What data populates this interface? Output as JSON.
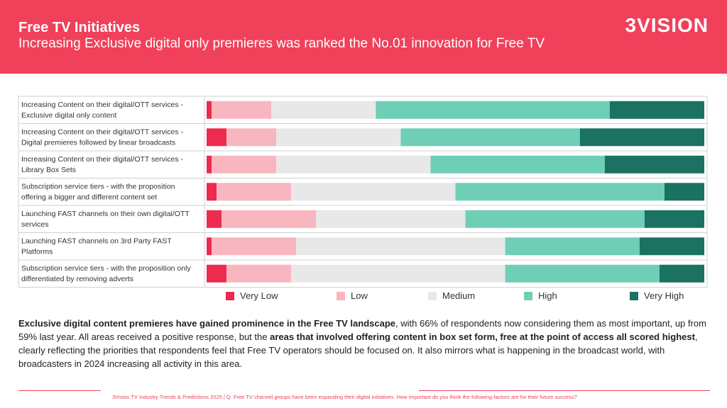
{
  "header": {
    "title": "Free TV Initiatives",
    "subtitle": "Increasing Exclusive digital only premieres was ranked the No.01 innovation for Free TV",
    "logo": "3VISION"
  },
  "colors": {
    "brand": "#f0405a",
    "very_low": "#ed2b4f",
    "low": "#f8b6c1",
    "medium": "#e8e8e8",
    "high": "#6ecfb6",
    "very_high": "#1b7262"
  },
  "chart_data": {
    "type": "bar",
    "orientation": "horizontal",
    "stacked": true,
    "normalized": true,
    "categories": [
      "Increasing Content on their digital/OTT services - Exclusive digital only content",
      "Increasing Content on their digital/OTT services - Digital premieres followed by linear broadcasts",
      "Increasing Content on their digital/OTT services - Library Box Sets",
      "Subscription service tiers - with the proposition offering a bigger and different content set",
      "Launching FAST channels on their own digital/OTT services",
      "Launching FAST channels on 3rd Party FAST Platforms",
      "Subscription service tiers - with the proposition only differentiated by removing adverts"
    ],
    "category_lines": [
      [
        "Increasing Content on their digital/OTT services -",
        "Exclusive digital only content"
      ],
      [
        "Increasing Content on their digital/OTT services -",
        "Digital premieres followed by linear broadcasts"
      ],
      [
        "Increasing Content on their digital/OTT services -",
        "Library Box Sets"
      ],
      [
        "Subscription service tiers - with the proposition",
        "offering a bigger and different content set"
      ],
      [
        "Launching FAST channels on their own digital/OTT",
        "services"
      ],
      [
        "Launching FAST channels on 3rd Party FAST",
        "Platforms"
      ],
      [
        "Subscription service tiers - with the proposition only",
        "differentiated by removing adverts"
      ]
    ],
    "series": [
      {
        "name": "Very Low",
        "color": "#ed2b4f",
        "values": [
          1,
          4,
          1,
          2,
          3,
          1,
          4
        ]
      },
      {
        "name": "Low",
        "color": "#f8b6c1",
        "values": [
          12,
          10,
          13,
          15,
          19,
          17,
          13
        ]
      },
      {
        "name": "Medium",
        "color": "#e8e8e8",
        "values": [
          21,
          25,
          31,
          33,
          30,
          42,
          43
        ]
      },
      {
        "name": "High",
        "color": "#6ecfb6",
        "values": [
          47,
          36,
          35,
          42,
          36,
          27,
          31
        ]
      },
      {
        "name": "Very High",
        "color": "#1b7262",
        "values": [
          19,
          25,
          20,
          8,
          12,
          13,
          9
        ]
      }
    ],
    "xlim": [
      0,
      100
    ],
    "legend_position": "bottom"
  },
  "body": {
    "p1_bold": "Exclusive digital content premieres have gained prominence in the Free TV landscape",
    "p1_rest": ", with 66% of respondents now considering them as most important, up from 59% last year. All areas received a positive response, but the ",
    "p2_bold": "areas that involved offering content in box set form, free at the point of access all scored highest",
    "p2_rest": ", clearly reflecting the priorities that respondents feel that Free TV operators should be focused on. It also mirrors what is happening in the broadcast world, with broadcasters in 2024 increasing all activity in this area."
  },
  "footer": {
    "text": "3Vision TV Industry Trends & Predictions 2025 | Q. Free TV channel groups have been expanding their digital initiatives. How important do you think the following factors are for their future success?"
  }
}
